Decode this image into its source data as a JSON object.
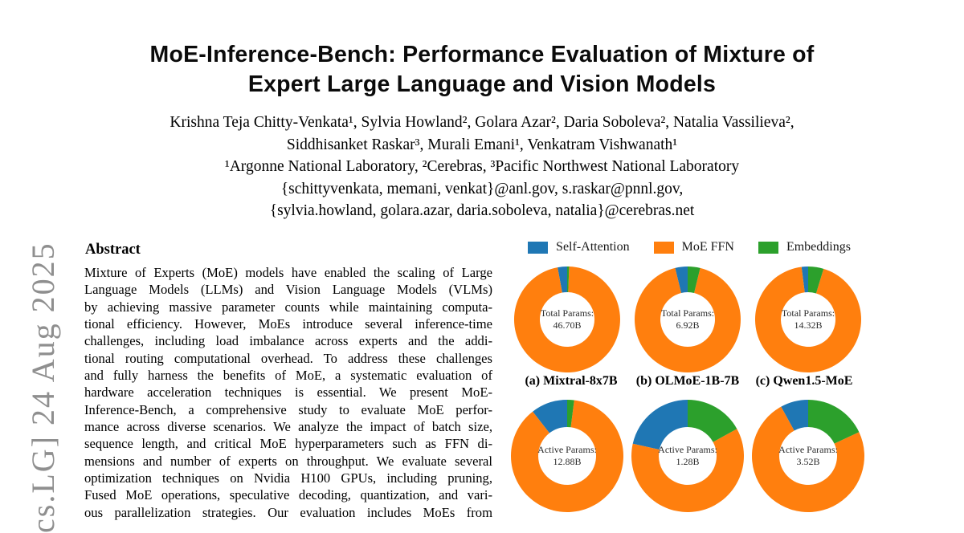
{
  "arxiv_stamp": {
    "text": "cs.LG] 24 Aug 2025"
  },
  "paper": {
    "title_line1": "MoE-Inference-Bench: Performance Evaluation of Mixture of",
    "title_line2": "Expert Large Language and Vision Models",
    "authors_line1": "Krishna Teja Chitty-Venkata¹, Sylvia Howland², Golara Azar², Daria Soboleva², Natalia Vassilieva²,",
    "authors_line2": "Siddhisanket Raskar³, Murali Emani¹, Venkatram Vishwanath¹",
    "affiliations": "¹Argonne National Laboratory, ²Cerebras, ³Pacific Northwest National Laboratory",
    "emails_line1": "{schittyvenkata, memani, venkat}@anl.gov, s.raskar@pnnl.gov,",
    "emails_line2": "{sylvia.howland, golara.azar, daria.soboleva, natalia}@cerebras.net"
  },
  "abstract": {
    "heading": "Abstract",
    "lines": [
      "Mixture of Experts (MoE) models have enabled the scaling of Large",
      "Language Models (LLMs) and Vision Language Models (VLMs)",
      "by achieving massive parameter counts while maintaining computa-",
      "tional efficiency. However, MoEs introduce several inference-time",
      "challenges, including load imbalance across experts and the addi-",
      "tional routing computational overhead. To address these challenges",
      "and fully harness the benefits of MoE, a systematic evaluation of",
      "hardware acceleration techniques is essential. We present MoE-",
      "Inference-Bench, a comprehensive study to evaluate MoE perfor-",
      "mance across diverse scenarios. We analyze the impact of batch size,",
      "sequence length, and critical MoE hyperparameters such as FFN di-",
      "mensions and number of experts on throughput. We evaluate several",
      "optimization techniques on Nvidia H100 GPUs, including pruning,",
      "Fused MoE operations, speculative decoding, quantization, and vari-",
      "ous parallelization strategies. Our evaluation includes MoEs from"
    ]
  },
  "chart_data": {
    "type": "pie",
    "subtype": "donut",
    "start_angle": 90,
    "direction": "counterclockwise",
    "legend_position": "top",
    "legend": [
      {
        "label": "Self-Attention",
        "color": "#1f77b4"
      },
      {
        "label": "MoE FFN",
        "color": "#ff7f0e"
      },
      {
        "label": "Embeddings",
        "color": "#2ca02c"
      }
    ],
    "captions": [
      "(a) Mixtral-8x7B",
      "(b) OLMoE-1B-7B",
      "(c) Qwen1.5-MoE"
    ],
    "donuts": [
      {
        "model": "Mixtral-8x7B",
        "center_line1": "Total Params:",
        "center_line2": "46.70B",
        "fractions": {
          "self_attention": 0.029,
          "moe_ffn": 0.965,
          "embeddings": 0.006
        }
      },
      {
        "model": "OLMoE-1B-7B",
        "center_line1": "Total Params:",
        "center_line2": "6.92B",
        "fractions": {
          "self_attention": 0.038,
          "moe_ffn": 0.924,
          "embeddings": 0.038
        }
      },
      {
        "model": "Qwen1.5-MoE",
        "center_line1": "Total Params:",
        "center_line2": "14.32B",
        "fractions": {
          "self_attention": 0.02,
          "moe_ffn": 0.933,
          "embeddings": 0.047
        }
      },
      {
        "model": "Mixtral-8x7B",
        "center_line1": "Active Params:",
        "center_line2": "12.88B",
        "fractions": {
          "self_attention": 0.105,
          "moe_ffn": 0.875,
          "embeddings": 0.02
        }
      },
      {
        "model": "OLMoE-1B-7B",
        "center_line1": "Active Params:",
        "center_line2": "1.28B",
        "fractions": {
          "self_attention": 0.215,
          "moe_ffn": 0.615,
          "embeddings": 0.17
        }
      },
      {
        "model": "Qwen1.5-MoE",
        "center_line1": "Active Params:",
        "center_line2": "3.52B",
        "fractions": {
          "self_attention": 0.08,
          "moe_ffn": 0.74,
          "embeddings": 0.18
        }
      }
    ]
  }
}
